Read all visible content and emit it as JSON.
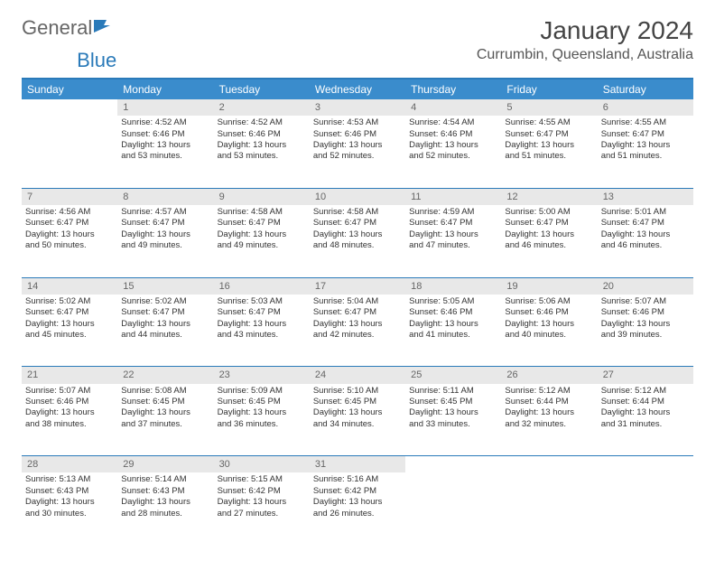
{
  "brand": {
    "name_part1": "General",
    "name_part2": "Blue"
  },
  "title": "January 2024",
  "location": "Currumbin, Queensland, Australia",
  "colors": {
    "header_bg": "#3a8ccc",
    "divider": "#2a7ab9",
    "daynum_bg": "#e8e8e8",
    "text": "#333333"
  },
  "weekdays": [
    "Sunday",
    "Monday",
    "Tuesday",
    "Wednesday",
    "Thursday",
    "Friday",
    "Saturday"
  ],
  "weeks": [
    {
      "nums": [
        "",
        "1",
        "2",
        "3",
        "4",
        "5",
        "6"
      ],
      "cells": [
        null,
        {
          "sunrise": "Sunrise: 4:52 AM",
          "sunset": "Sunset: 6:46 PM",
          "dl1": "Daylight: 13 hours",
          "dl2": "and 53 minutes."
        },
        {
          "sunrise": "Sunrise: 4:52 AM",
          "sunset": "Sunset: 6:46 PM",
          "dl1": "Daylight: 13 hours",
          "dl2": "and 53 minutes."
        },
        {
          "sunrise": "Sunrise: 4:53 AM",
          "sunset": "Sunset: 6:46 PM",
          "dl1": "Daylight: 13 hours",
          "dl2": "and 52 minutes."
        },
        {
          "sunrise": "Sunrise: 4:54 AM",
          "sunset": "Sunset: 6:46 PM",
          "dl1": "Daylight: 13 hours",
          "dl2": "and 52 minutes."
        },
        {
          "sunrise": "Sunrise: 4:55 AM",
          "sunset": "Sunset: 6:47 PM",
          "dl1": "Daylight: 13 hours",
          "dl2": "and 51 minutes."
        },
        {
          "sunrise": "Sunrise: 4:55 AM",
          "sunset": "Sunset: 6:47 PM",
          "dl1": "Daylight: 13 hours",
          "dl2": "and 51 minutes."
        }
      ]
    },
    {
      "nums": [
        "7",
        "8",
        "9",
        "10",
        "11",
        "12",
        "13"
      ],
      "cells": [
        {
          "sunrise": "Sunrise: 4:56 AM",
          "sunset": "Sunset: 6:47 PM",
          "dl1": "Daylight: 13 hours",
          "dl2": "and 50 minutes."
        },
        {
          "sunrise": "Sunrise: 4:57 AM",
          "sunset": "Sunset: 6:47 PM",
          "dl1": "Daylight: 13 hours",
          "dl2": "and 49 minutes."
        },
        {
          "sunrise": "Sunrise: 4:58 AM",
          "sunset": "Sunset: 6:47 PM",
          "dl1": "Daylight: 13 hours",
          "dl2": "and 49 minutes."
        },
        {
          "sunrise": "Sunrise: 4:58 AM",
          "sunset": "Sunset: 6:47 PM",
          "dl1": "Daylight: 13 hours",
          "dl2": "and 48 minutes."
        },
        {
          "sunrise": "Sunrise: 4:59 AM",
          "sunset": "Sunset: 6:47 PM",
          "dl1": "Daylight: 13 hours",
          "dl2": "and 47 minutes."
        },
        {
          "sunrise": "Sunrise: 5:00 AM",
          "sunset": "Sunset: 6:47 PM",
          "dl1": "Daylight: 13 hours",
          "dl2": "and 46 minutes."
        },
        {
          "sunrise": "Sunrise: 5:01 AM",
          "sunset": "Sunset: 6:47 PM",
          "dl1": "Daylight: 13 hours",
          "dl2": "and 46 minutes."
        }
      ]
    },
    {
      "nums": [
        "14",
        "15",
        "16",
        "17",
        "18",
        "19",
        "20"
      ],
      "cells": [
        {
          "sunrise": "Sunrise: 5:02 AM",
          "sunset": "Sunset: 6:47 PM",
          "dl1": "Daylight: 13 hours",
          "dl2": "and 45 minutes."
        },
        {
          "sunrise": "Sunrise: 5:02 AM",
          "sunset": "Sunset: 6:47 PM",
          "dl1": "Daylight: 13 hours",
          "dl2": "and 44 minutes."
        },
        {
          "sunrise": "Sunrise: 5:03 AM",
          "sunset": "Sunset: 6:47 PM",
          "dl1": "Daylight: 13 hours",
          "dl2": "and 43 minutes."
        },
        {
          "sunrise": "Sunrise: 5:04 AM",
          "sunset": "Sunset: 6:47 PM",
          "dl1": "Daylight: 13 hours",
          "dl2": "and 42 minutes."
        },
        {
          "sunrise": "Sunrise: 5:05 AM",
          "sunset": "Sunset: 6:46 PM",
          "dl1": "Daylight: 13 hours",
          "dl2": "and 41 minutes."
        },
        {
          "sunrise": "Sunrise: 5:06 AM",
          "sunset": "Sunset: 6:46 PM",
          "dl1": "Daylight: 13 hours",
          "dl2": "and 40 minutes."
        },
        {
          "sunrise": "Sunrise: 5:07 AM",
          "sunset": "Sunset: 6:46 PM",
          "dl1": "Daylight: 13 hours",
          "dl2": "and 39 minutes."
        }
      ]
    },
    {
      "nums": [
        "21",
        "22",
        "23",
        "24",
        "25",
        "26",
        "27"
      ],
      "cells": [
        {
          "sunrise": "Sunrise: 5:07 AM",
          "sunset": "Sunset: 6:46 PM",
          "dl1": "Daylight: 13 hours",
          "dl2": "and 38 minutes."
        },
        {
          "sunrise": "Sunrise: 5:08 AM",
          "sunset": "Sunset: 6:45 PM",
          "dl1": "Daylight: 13 hours",
          "dl2": "and 37 minutes."
        },
        {
          "sunrise": "Sunrise: 5:09 AM",
          "sunset": "Sunset: 6:45 PM",
          "dl1": "Daylight: 13 hours",
          "dl2": "and 36 minutes."
        },
        {
          "sunrise": "Sunrise: 5:10 AM",
          "sunset": "Sunset: 6:45 PM",
          "dl1": "Daylight: 13 hours",
          "dl2": "and 34 minutes."
        },
        {
          "sunrise": "Sunrise: 5:11 AM",
          "sunset": "Sunset: 6:45 PM",
          "dl1": "Daylight: 13 hours",
          "dl2": "and 33 minutes."
        },
        {
          "sunrise": "Sunrise: 5:12 AM",
          "sunset": "Sunset: 6:44 PM",
          "dl1": "Daylight: 13 hours",
          "dl2": "and 32 minutes."
        },
        {
          "sunrise": "Sunrise: 5:12 AM",
          "sunset": "Sunset: 6:44 PM",
          "dl1": "Daylight: 13 hours",
          "dl2": "and 31 minutes."
        }
      ]
    },
    {
      "nums": [
        "28",
        "29",
        "30",
        "31",
        "",
        "",
        ""
      ],
      "cells": [
        {
          "sunrise": "Sunrise: 5:13 AM",
          "sunset": "Sunset: 6:43 PM",
          "dl1": "Daylight: 13 hours",
          "dl2": "and 30 minutes."
        },
        {
          "sunrise": "Sunrise: 5:14 AM",
          "sunset": "Sunset: 6:43 PM",
          "dl1": "Daylight: 13 hours",
          "dl2": "and 28 minutes."
        },
        {
          "sunrise": "Sunrise: 5:15 AM",
          "sunset": "Sunset: 6:42 PM",
          "dl1": "Daylight: 13 hours",
          "dl2": "and 27 minutes."
        },
        {
          "sunrise": "Sunrise: 5:16 AM",
          "sunset": "Sunset: 6:42 PM",
          "dl1": "Daylight: 13 hours",
          "dl2": "and 26 minutes."
        },
        null,
        null,
        null
      ]
    }
  ]
}
